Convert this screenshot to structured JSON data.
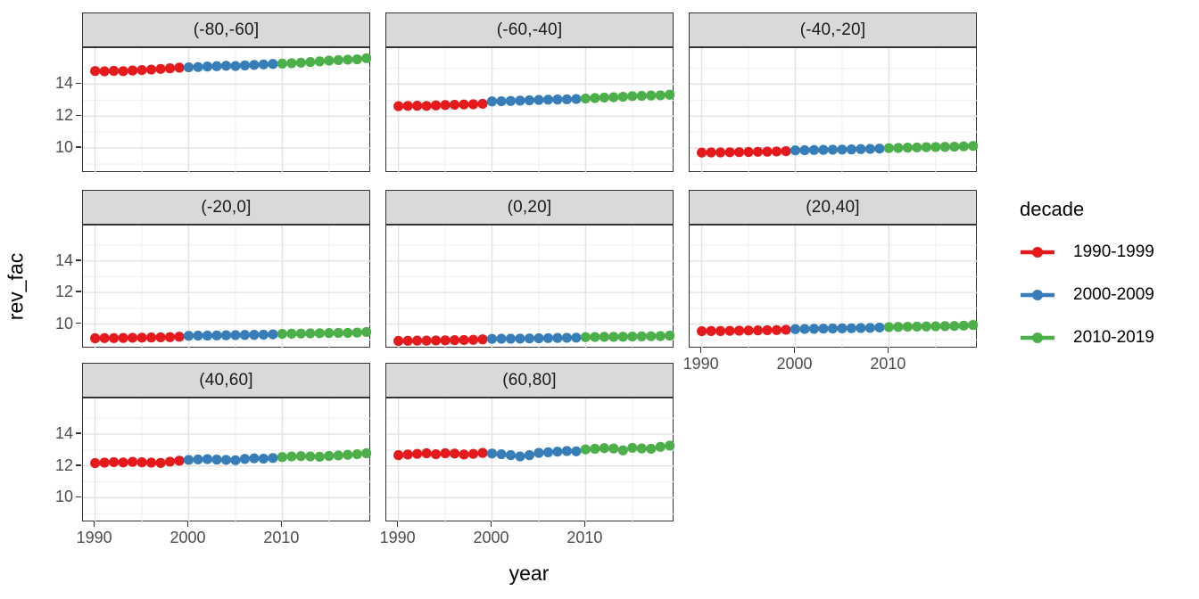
{
  "chart_data": {
    "type": "scatter",
    "title": "",
    "xlabel": "year",
    "ylabel": "rev_fac",
    "x_ticks": [
      1990,
      2000,
      2010
    ],
    "y_ticks": [
      14,
      12,
      10
    ],
    "x_minor": [
      1995,
      2005,
      2015
    ],
    "y_minor": [
      9,
      11,
      13,
      15
    ],
    "xlim": [
      1988.7,
      2019.5
    ],
    "ylim": [
      8.45,
      16.25
    ],
    "grid": "major-and-minor",
    "legend_position": "right",
    "years": [
      1990,
      1991,
      1992,
      1993,
      1994,
      1995,
      1996,
      1997,
      1998,
      1999,
      2000,
      2001,
      2002,
      2003,
      2004,
      2005,
      2006,
      2007,
      2008,
      2009,
      2010,
      2011,
      2012,
      2013,
      2014,
      2015,
      2016,
      2017,
      2018,
      2019
    ],
    "decades": [
      {
        "label": "1990-1999",
        "from": 1990,
        "to": 1999,
        "color": "#e41a1c"
      },
      {
        "label": "2000-2009",
        "from": 2000,
        "to": 2009,
        "color": "#377eb8"
      },
      {
        "label": "2010-2019",
        "from": 2010,
        "to": 2019,
        "color": "#4daf4a"
      }
    ],
    "legend": {
      "title": "decade",
      "entries": [
        {
          "label": "1990-1999",
          "color": "#e41a1c"
        },
        {
          "label": "2000-2009",
          "color": "#377eb8"
        },
        {
          "label": "2010-2019",
          "color": "#4daf4a"
        }
      ]
    },
    "facets": [
      {
        "label": "(-80,-60]",
        "values": [
          14.82,
          14.8,
          14.83,
          14.81,
          14.85,
          14.88,
          14.91,
          14.95,
          14.99,
          15.03,
          15.05,
          15.07,
          15.1,
          15.12,
          15.15,
          15.13,
          15.17,
          15.2,
          15.23,
          15.26,
          15.28,
          15.31,
          15.34,
          15.38,
          15.42,
          15.47,
          15.5,
          15.53,
          15.55,
          15.62
        ]
      },
      {
        "label": "(-60,-40]",
        "values": [
          12.62,
          12.64,
          12.65,
          12.64,
          12.67,
          12.69,
          12.71,
          12.73,
          12.74,
          12.77,
          12.92,
          12.93,
          12.95,
          12.97,
          12.99,
          13.01,
          13.03,
          13.04,
          13.05,
          13.07,
          13.1,
          13.13,
          13.16,
          13.18,
          13.21,
          13.25,
          13.27,
          13.29,
          13.3,
          13.34
        ]
      },
      {
        "label": "(-40,-20]",
        "values": [
          9.72,
          9.73,
          9.73,
          9.74,
          9.75,
          9.76,
          9.77,
          9.78,
          9.79,
          9.81,
          9.86,
          9.87,
          9.88,
          9.89,
          9.9,
          9.91,
          9.92,
          9.94,
          9.95,
          9.97,
          10.0,
          10.01,
          10.03,
          10.04,
          10.06,
          10.07,
          10.08,
          10.09,
          10.11,
          10.14
        ]
      },
      {
        "label": "(-20,0]",
        "values": [
          9.1,
          9.11,
          9.11,
          9.12,
          9.13,
          9.14,
          9.15,
          9.16,
          9.17,
          9.2,
          9.26,
          9.27,
          9.27,
          9.28,
          9.29,
          9.3,
          9.31,
          9.32,
          9.33,
          9.35,
          9.38,
          9.39,
          9.4,
          9.41,
          9.42,
          9.43,
          9.44,
          9.44,
          9.46,
          9.5
        ]
      },
      {
        "label": "(0,20]",
        "values": [
          8.93,
          8.94,
          8.95,
          8.95,
          8.96,
          8.97,
          8.98,
          8.99,
          9.0,
          9.03,
          9.06,
          9.07,
          9.07,
          9.08,
          9.09,
          9.1,
          9.11,
          9.12,
          9.13,
          9.14,
          9.17,
          9.18,
          9.19,
          9.19,
          9.2,
          9.21,
          9.22,
          9.23,
          9.24,
          9.27
        ]
      },
      {
        "label": "(20,40]",
        "values": [
          9.55,
          9.56,
          9.56,
          9.57,
          9.58,
          9.59,
          9.6,
          9.61,
          9.62,
          9.64,
          9.68,
          9.69,
          9.7,
          9.71,
          9.72,
          9.73,
          9.74,
          9.75,
          9.76,
          9.78,
          9.81,
          9.82,
          9.83,
          9.84,
          9.85,
          9.86,
          9.87,
          9.88,
          9.9,
          9.94
        ]
      },
      {
        "label": "(40,60]",
        "values": [
          12.18,
          12.21,
          12.24,
          12.22,
          12.26,
          12.23,
          12.21,
          12.19,
          12.27,
          12.33,
          12.38,
          12.41,
          12.43,
          12.4,
          12.38,
          12.36,
          12.44,
          12.48,
          12.46,
          12.5,
          12.56,
          12.6,
          12.62,
          12.6,
          12.58,
          12.63,
          12.66,
          12.7,
          12.74,
          12.8
        ]
      },
      {
        "label": "(60,80]",
        "values": [
          12.68,
          12.72,
          12.76,
          12.8,
          12.74,
          12.8,
          12.78,
          12.72,
          12.76,
          12.82,
          12.78,
          12.74,
          12.68,
          12.6,
          12.68,
          12.82,
          12.86,
          12.9,
          12.94,
          12.92,
          13.04,
          13.08,
          13.12,
          13.1,
          12.98,
          13.14,
          13.1,
          13.08,
          13.2,
          13.28
        ]
      }
    ]
  }
}
